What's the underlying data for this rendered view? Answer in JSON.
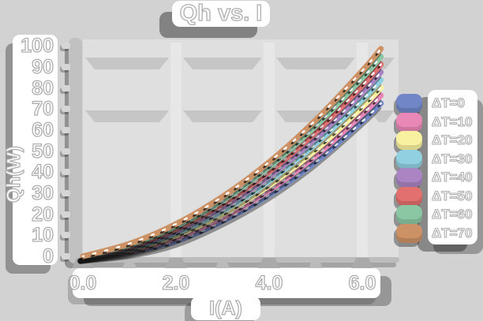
{
  "title": "Qh vs. I",
  "colors": {
    "page_bg": "#d2d2d2",
    "plot_bg": "#dfdfdf",
    "grid_band": "#c6c6c6",
    "spine": "#c1c1c1",
    "text_fill": "#ffffff",
    "text_outline": "#aeaeae"
  },
  "chart_data": {
    "type": "line",
    "title": "Qh vs. I",
    "xlabel": "I(A)",
    "ylabel": "Qh(W)",
    "xlim": [
      0,
      6.8
    ],
    "ylim": [
      0,
      105
    ],
    "xtick_labels": [
      "0.0",
      "2.0",
      "4.0",
      "6.0"
    ],
    "xtick_values": [
      0,
      2,
      4,
      6
    ],
    "xtick_minor_values": [
      1,
      3,
      5
    ],
    "ytick_labels": [
      "0",
      "10",
      "20",
      "30",
      "40",
      "50",
      "60",
      "70",
      "80",
      "90",
      "100"
    ],
    "ytick_values": [
      0,
      10,
      20,
      30,
      40,
      50,
      60,
      70,
      80,
      90,
      100
    ],
    "grid": "horizontal-bands",
    "grid_band_levels": [
      90,
      65
    ],
    "legend_position": "right",
    "x": [
      0,
      1,
      2,
      3,
      4,
      5,
      6,
      6.4
    ],
    "series": [
      {
        "name": "ΔT=0",
        "color": "#7186c6",
        "values": [
          0,
          2.2,
          7.3,
          16.8,
          29.2,
          45.0,
          64.2,
          72.8
        ]
      },
      {
        "name": "ΔT=10",
        "color": "#e988b6",
        "values": [
          0,
          2.7,
          8.9,
          18.5,
          31.4,
          47.8,
          67.6,
          76.5
        ]
      },
      {
        "name": "ΔT=20",
        "color": "#f8f2a0",
        "values": [
          0,
          3.3,
          10.0,
          20.1,
          33.7,
          50.6,
          71.0,
          80.2
        ]
      },
      {
        "name": "ΔT=30",
        "color": "#90d0e0",
        "values": [
          0,
          3.8,
          11.1,
          21.7,
          35.9,
          53.5,
          74.5,
          83.9
        ]
      },
      {
        "name": "ΔT=40",
        "color": "#ab84c4",
        "values": [
          0,
          4.3,
          12.1,
          23.4,
          38.1,
          56.3,
          77.9,
          87.6
        ]
      },
      {
        "name": "ΔT=50",
        "color": "#e2706e",
        "values": [
          0,
          4.9,
          13.2,
          25.0,
          40.3,
          59.1,
          81.3,
          91.3
        ]
      },
      {
        "name": "ΔT=60",
        "color": "#8cc7a3",
        "values": [
          0,
          5.4,
          14.3,
          26.6,
          42.6,
          62.0,
          84.8,
          95.0
        ]
      },
      {
        "name": "ΔT=70",
        "color": "#cc9164",
        "values": [
          0,
          6.0,
          15.4,
          28.4,
          44.8,
          64.8,
          88.2,
          98.7
        ]
      }
    ]
  }
}
